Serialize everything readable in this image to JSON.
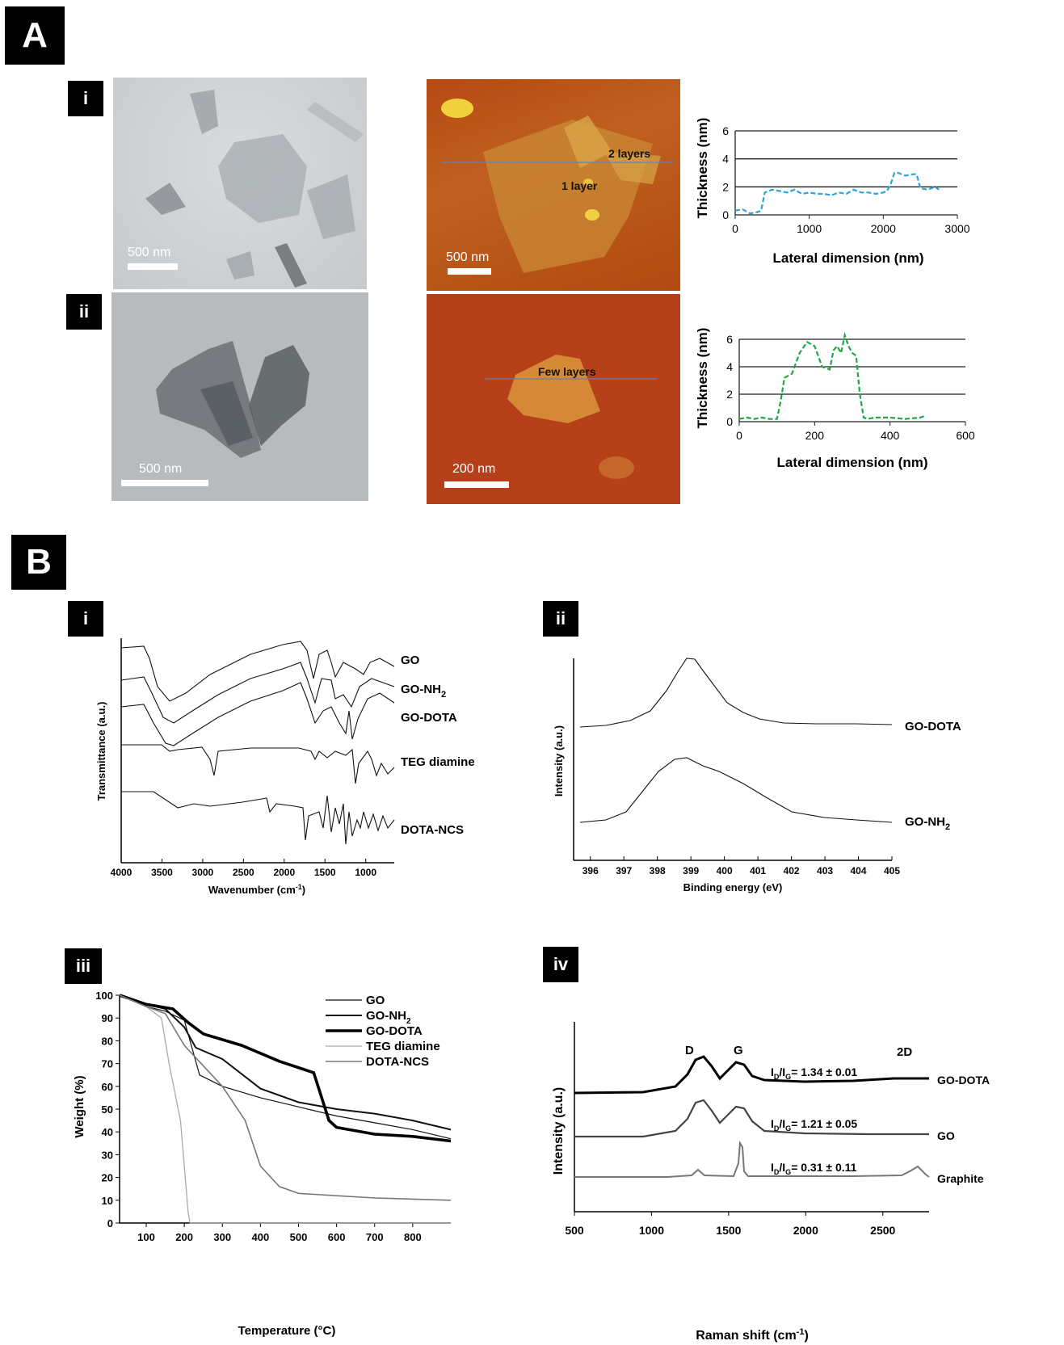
{
  "panels": {
    "A": {
      "label": "A"
    },
    "B": {
      "label": "B"
    },
    "sub": {
      "i": "i",
      "ii": "ii",
      "iii": "iii",
      "iv": "iv"
    }
  },
  "images": {
    "tem_i": {
      "scale": "500 nm"
    },
    "afm_i": {
      "scale": "500 nm",
      "label_2layers": "2 layers",
      "label_1layer": "1 layer"
    },
    "tem_ii": {
      "scale": "500 nm"
    },
    "afm_ii": {
      "scale": "200 nm",
      "label_few": "Few layers"
    }
  },
  "chart_data": [
    {
      "id": "afm-profile-i",
      "type": "line",
      "xlabel": "Lateral dimension (nm)",
      "ylabel": "Thickness (nm)",
      "xlim": [
        0,
        3000
      ],
      "ylim": [
        0,
        6
      ],
      "xticks": [
        "0",
        "1000",
        "2000",
        "3000"
      ],
      "yticks": [
        "0",
        "2",
        "4",
        "6"
      ],
      "grid": true,
      "color": "#2aa5d8",
      "x": [
        0,
        100,
        200,
        300,
        350,
        400,
        500,
        600,
        700,
        800,
        900,
        1000,
        1100,
        1200,
        1300,
        1400,
        1500,
        1600,
        1700,
        1800,
        1900,
        2000,
        2050,
        2100,
        2150,
        2200,
        2300,
        2400,
        2450,
        2500,
        2600,
        2700,
        2750
      ],
      "y": [
        0.3,
        0.4,
        0.1,
        0.2,
        0.3,
        1.6,
        1.8,
        1.7,
        1.6,
        1.8,
        1.5,
        1.6,
        1.5,
        1.5,
        1.4,
        1.6,
        1.5,
        1.8,
        1.6,
        1.6,
        1.5,
        1.6,
        1.7,
        2.2,
        3.0,
        3.0,
        2.8,
        2.9,
        2.9,
        1.9,
        1.8,
        2.0,
        1.8
      ]
    },
    {
      "id": "afm-profile-ii",
      "type": "line",
      "xlabel": "Lateral dimension (nm)",
      "ylabel": "Thickness (nm)",
      "xlim": [
        0,
        600
      ],
      "ylim": [
        0,
        6
      ],
      "xticks": [
        "0",
        "200",
        "400",
        "600"
      ],
      "yticks": [
        "0",
        "2",
        "4",
        "6"
      ],
      "grid": true,
      "color": "#1fa844",
      "x": [
        0,
        20,
        40,
        60,
        80,
        100,
        110,
        120,
        140,
        160,
        180,
        200,
        220,
        240,
        250,
        260,
        270,
        280,
        290,
        300,
        310,
        320,
        330,
        340,
        360,
        400,
        440,
        480,
        490
      ],
      "y": [
        0.2,
        0.3,
        0.2,
        0.3,
        0.2,
        0.2,
        1.5,
        3.2,
        3.5,
        5.0,
        5.8,
        5.5,
        4.0,
        3.8,
        5.2,
        5.5,
        5.0,
        6.3,
        5.5,
        5.0,
        4.8,
        2.0,
        0.3,
        0.2,
        0.3,
        0.3,
        0.2,
        0.3,
        0.4
      ]
    },
    {
      "id": "ftir",
      "type": "line",
      "xlabel": "Wavenumber (cm",
      "xlabel_sup": "-1",
      "xlabel_end": ")",
      "ylabel": "Transmittance (a.u.)",
      "xlim": [
        4000,
        650
      ],
      "xticks": [
        "4000",
        "3500",
        "3000",
        "2500",
        "2000",
        "1500",
        "1000"
      ],
      "series_labels": [
        "GO",
        "GO-NH",
        "GO-DOTA",
        "TEG diamine",
        "DOTA-NCS"
      ]
    },
    {
      "id": "xps",
      "type": "line",
      "xlabel": "Binding energy (eV)",
      "ylabel": "Intensity (a.u.)",
      "xlim": [
        395.5,
        405
      ],
      "xticks": [
        "396",
        "397",
        "398",
        "399",
        "400",
        "401",
        "402",
        "403",
        "404",
        "405"
      ],
      "series_labels": [
        "GO-DOTA",
        "GO-NH"
      ]
    },
    {
      "id": "tga",
      "type": "line",
      "xlabel": "Temperature (°C)",
      "ylabel": "Weight (%)",
      "xlim": [
        30,
        900
      ],
      "ylim": [
        0,
        100
      ],
      "xticks": [
        "100",
        "200",
        "300",
        "400",
        "500",
        "600",
        "700",
        "800"
      ],
      "yticks": [
        "0",
        "10",
        "20",
        "30",
        "40",
        "50",
        "60",
        "70",
        "80",
        "90",
        "100"
      ],
      "legend": [
        "GO",
        "GO-NH",
        "GO-DOTA",
        "TEG diamine",
        "DOTA-NCS"
      ],
      "series": [
        {
          "name": "GO",
          "x": [
            30,
            100,
            150,
            200,
            240,
            300,
            400,
            500,
            600,
            700,
            800,
            900
          ],
          "y": [
            100,
            95,
            93,
            89,
            65,
            60,
            55,
            51,
            47,
            44,
            41,
            37
          ]
        },
        {
          "name": "GO-NH",
          "x": [
            30,
            100,
            150,
            200,
            230,
            300,
            400,
            500,
            600,
            700,
            800,
            900
          ],
          "y": [
            100,
            96,
            94,
            86,
            77,
            72,
            59,
            53,
            50,
            48,
            45,
            41
          ]
        },
        {
          "name": "GO-DOTA",
          "x": [
            30,
            100,
            170,
            210,
            250,
            350,
            450,
            540,
            580,
            600,
            700,
            800,
            900
          ],
          "y": [
            100,
            96,
            94,
            88,
            83,
            78,
            71,
            66,
            45,
            42,
            39,
            38,
            36
          ]
        },
        {
          "name": "TEG diamine",
          "x": [
            30,
            100,
            140,
            160,
            190,
            210,
            215,
            300,
            900
          ],
          "y": [
            100,
            95,
            90,
            70,
            45,
            5,
            0,
            0,
            0
          ]
        },
        {
          "name": "DOTA-NCS",
          "x": [
            30,
            100,
            150,
            200,
            300,
            360,
            400,
            450,
            500,
            600,
            700,
            800,
            900
          ],
          "y": [
            100,
            95,
            92,
            78,
            60,
            45,
            25,
            16,
            13,
            12,
            11,
            10.5,
            10
          ]
        }
      ]
    },
    {
      "id": "raman",
      "type": "line",
      "xlabel": "Raman shift (cm",
      "xlabel_sup": "-1",
      "xlabel_end": ")",
      "ylabel": "Intensity (a.u.)",
      "xlim": [
        500,
        2800
      ],
      "xticks": [
        "500",
        "1000",
        "1500",
        "2000",
        "2500"
      ],
      "peaks": [
        "D",
        "G",
        "2D"
      ],
      "series_labels": [
        "GO-DOTA",
        "GO",
        "Graphite"
      ],
      "ratios": [
        "I",
        "I",
        "I"
      ],
      "ratio_values": [
        "= 1.34 ± 0.01",
        "= 1.21 ± 0.05",
        "= 0.31 ± 0.11"
      ],
      "ratio_sub_D": "D",
      "ratio_sub_G": "G"
    }
  ],
  "subscripts": {
    "nh2": "2"
  }
}
